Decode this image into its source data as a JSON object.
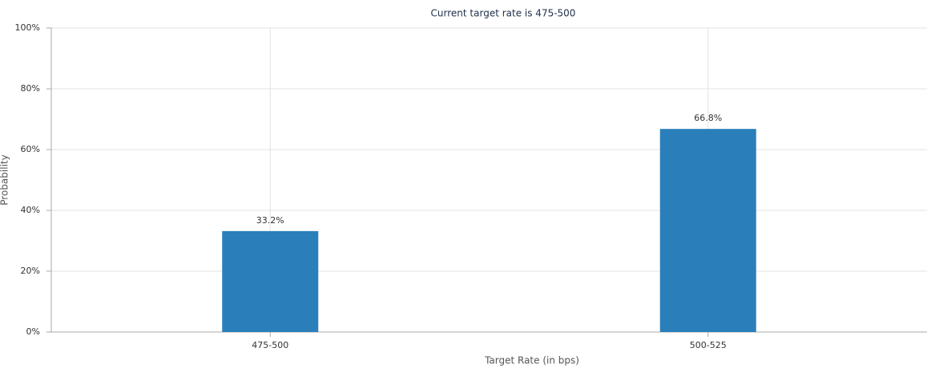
{
  "chart_data": {
    "type": "bar",
    "title": "Current target rate is 475-500",
    "x_label": "Target Rate (in bps)",
    "y_label": "Probability",
    "categories": [
      "475-500",
      "500-525"
    ],
    "values": [
      33.2,
      66.8
    ],
    "value_labels": [
      "33.2%",
      "66.8%"
    ],
    "color": "#2a7fba",
    "ylim": [
      0,
      100
    ],
    "yticks": [
      {
        "value": 0,
        "label": "0%"
      },
      {
        "value": 20,
        "label": "20%"
      },
      {
        "value": 40,
        "label": "40%"
      },
      {
        "value": 60,
        "label": "60%"
      },
      {
        "value": 80,
        "label": "80%"
      },
      {
        "value": 100,
        "label": "100%"
      }
    ],
    "grid": true
  }
}
